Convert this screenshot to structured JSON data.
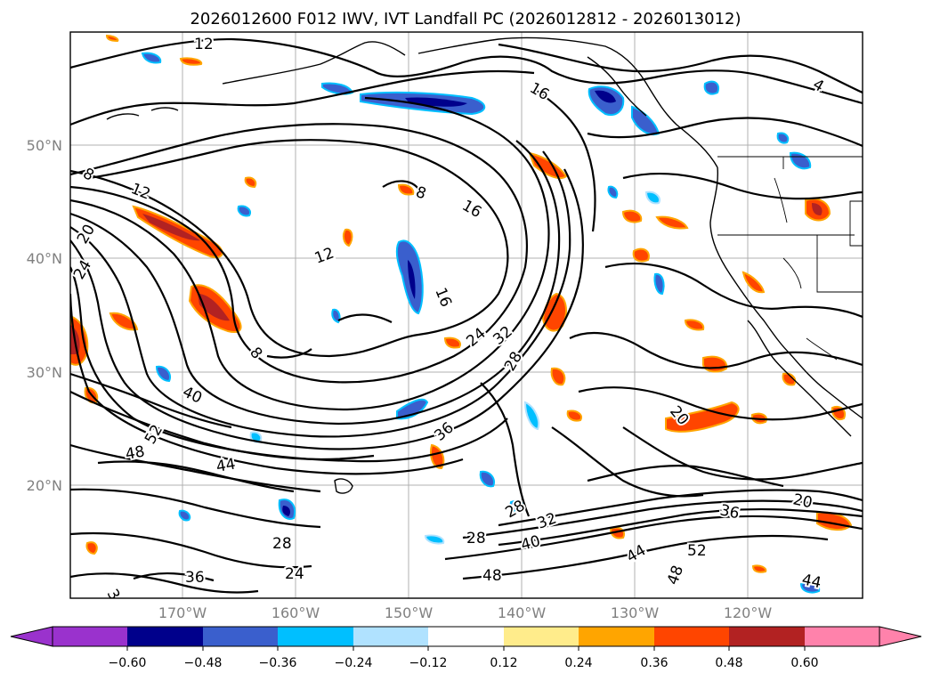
{
  "title": "2026012600 F012 IWV, IVT Landfall PC (2026012812 - 2026013012)",
  "latitudes": [
    "50°N",
    "40°N",
    "30°N",
    "20°N"
  ],
  "longitudes": [
    "170°W",
    "160°W",
    "150°W",
    "140°W",
    "130°W",
    "120°W"
  ],
  "contour_labels": [
    "12",
    "16",
    "4",
    "8",
    "12",
    "20",
    "24",
    "16",
    "8",
    "12",
    "16",
    "8",
    "40",
    "24",
    "32",
    "28",
    "20",
    "36",
    "52",
    "48",
    "44",
    "28",
    "32",
    "28",
    "40",
    "20",
    "36",
    "44",
    "52",
    "48",
    "28",
    "24",
    "36",
    "36",
    "48",
    "44"
  ],
  "colorbar": {
    "ticks": [
      "−0.60",
      "−0.48",
      "−0.36",
      "−0.24",
      "−0.12",
      "0.12",
      "0.24",
      "0.36",
      "0.48",
      "0.60"
    ],
    "colors": [
      "#9a32cd",
      "#00008b",
      "#3a5fcd",
      "#00bfff",
      "#b0e2ff",
      "#ffffff",
      "#ffec8b",
      "#ffa500",
      "#ff4500",
      "#b22222",
      "#ff82ab"
    ]
  }
}
